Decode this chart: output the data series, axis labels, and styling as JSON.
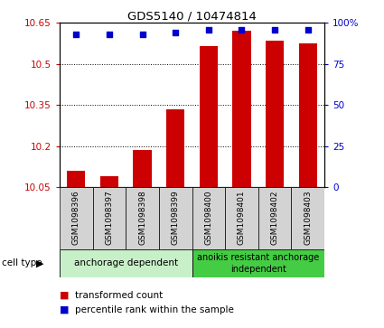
{
  "title": "GDS5140 / 10474814",
  "samples": [
    "GSM1098396",
    "GSM1098397",
    "GSM1098398",
    "GSM1098399",
    "GSM1098400",
    "GSM1098401",
    "GSM1098402",
    "GSM1098403"
  ],
  "bar_values": [
    10.11,
    10.09,
    10.185,
    10.335,
    10.565,
    10.62,
    10.585,
    10.575
  ],
  "percentile_values": [
    93,
    93,
    93,
    94,
    96,
    96,
    96,
    96
  ],
  "ylim_left": [
    10.05,
    10.65
  ],
  "ylim_right": [
    0,
    100
  ],
  "yticks_left": [
    10.05,
    10.2,
    10.35,
    10.5,
    10.65
  ],
  "ytick_labels_left": [
    "10.05",
    "10.2",
    "10.35",
    "10.5",
    "10.65"
  ],
  "yticks_right": [
    0,
    25,
    50,
    75,
    100
  ],
  "ytick_labels_right": [
    "0",
    "25",
    "50",
    "75",
    "100%"
  ],
  "bar_color": "#cc0000",
  "dot_color": "#0000cc",
  "group1_label": "anchorage dependent",
  "group2_label": "anoikis resistant anchorage\nindependent",
  "group1_color": "#c8f0c8",
  "group2_color": "#44cc44",
  "cell_type_label": "cell type",
  "legend_bar": "transformed count",
  "legend_dot": "percentile rank within the sample",
  "bar_bottom": 10.05,
  "tick_area_bg": "#d3d3d3",
  "gridline_ticks": [
    10.2,
    10.35,
    10.5
  ],
  "n_group1": 4,
  "n_group2": 4
}
